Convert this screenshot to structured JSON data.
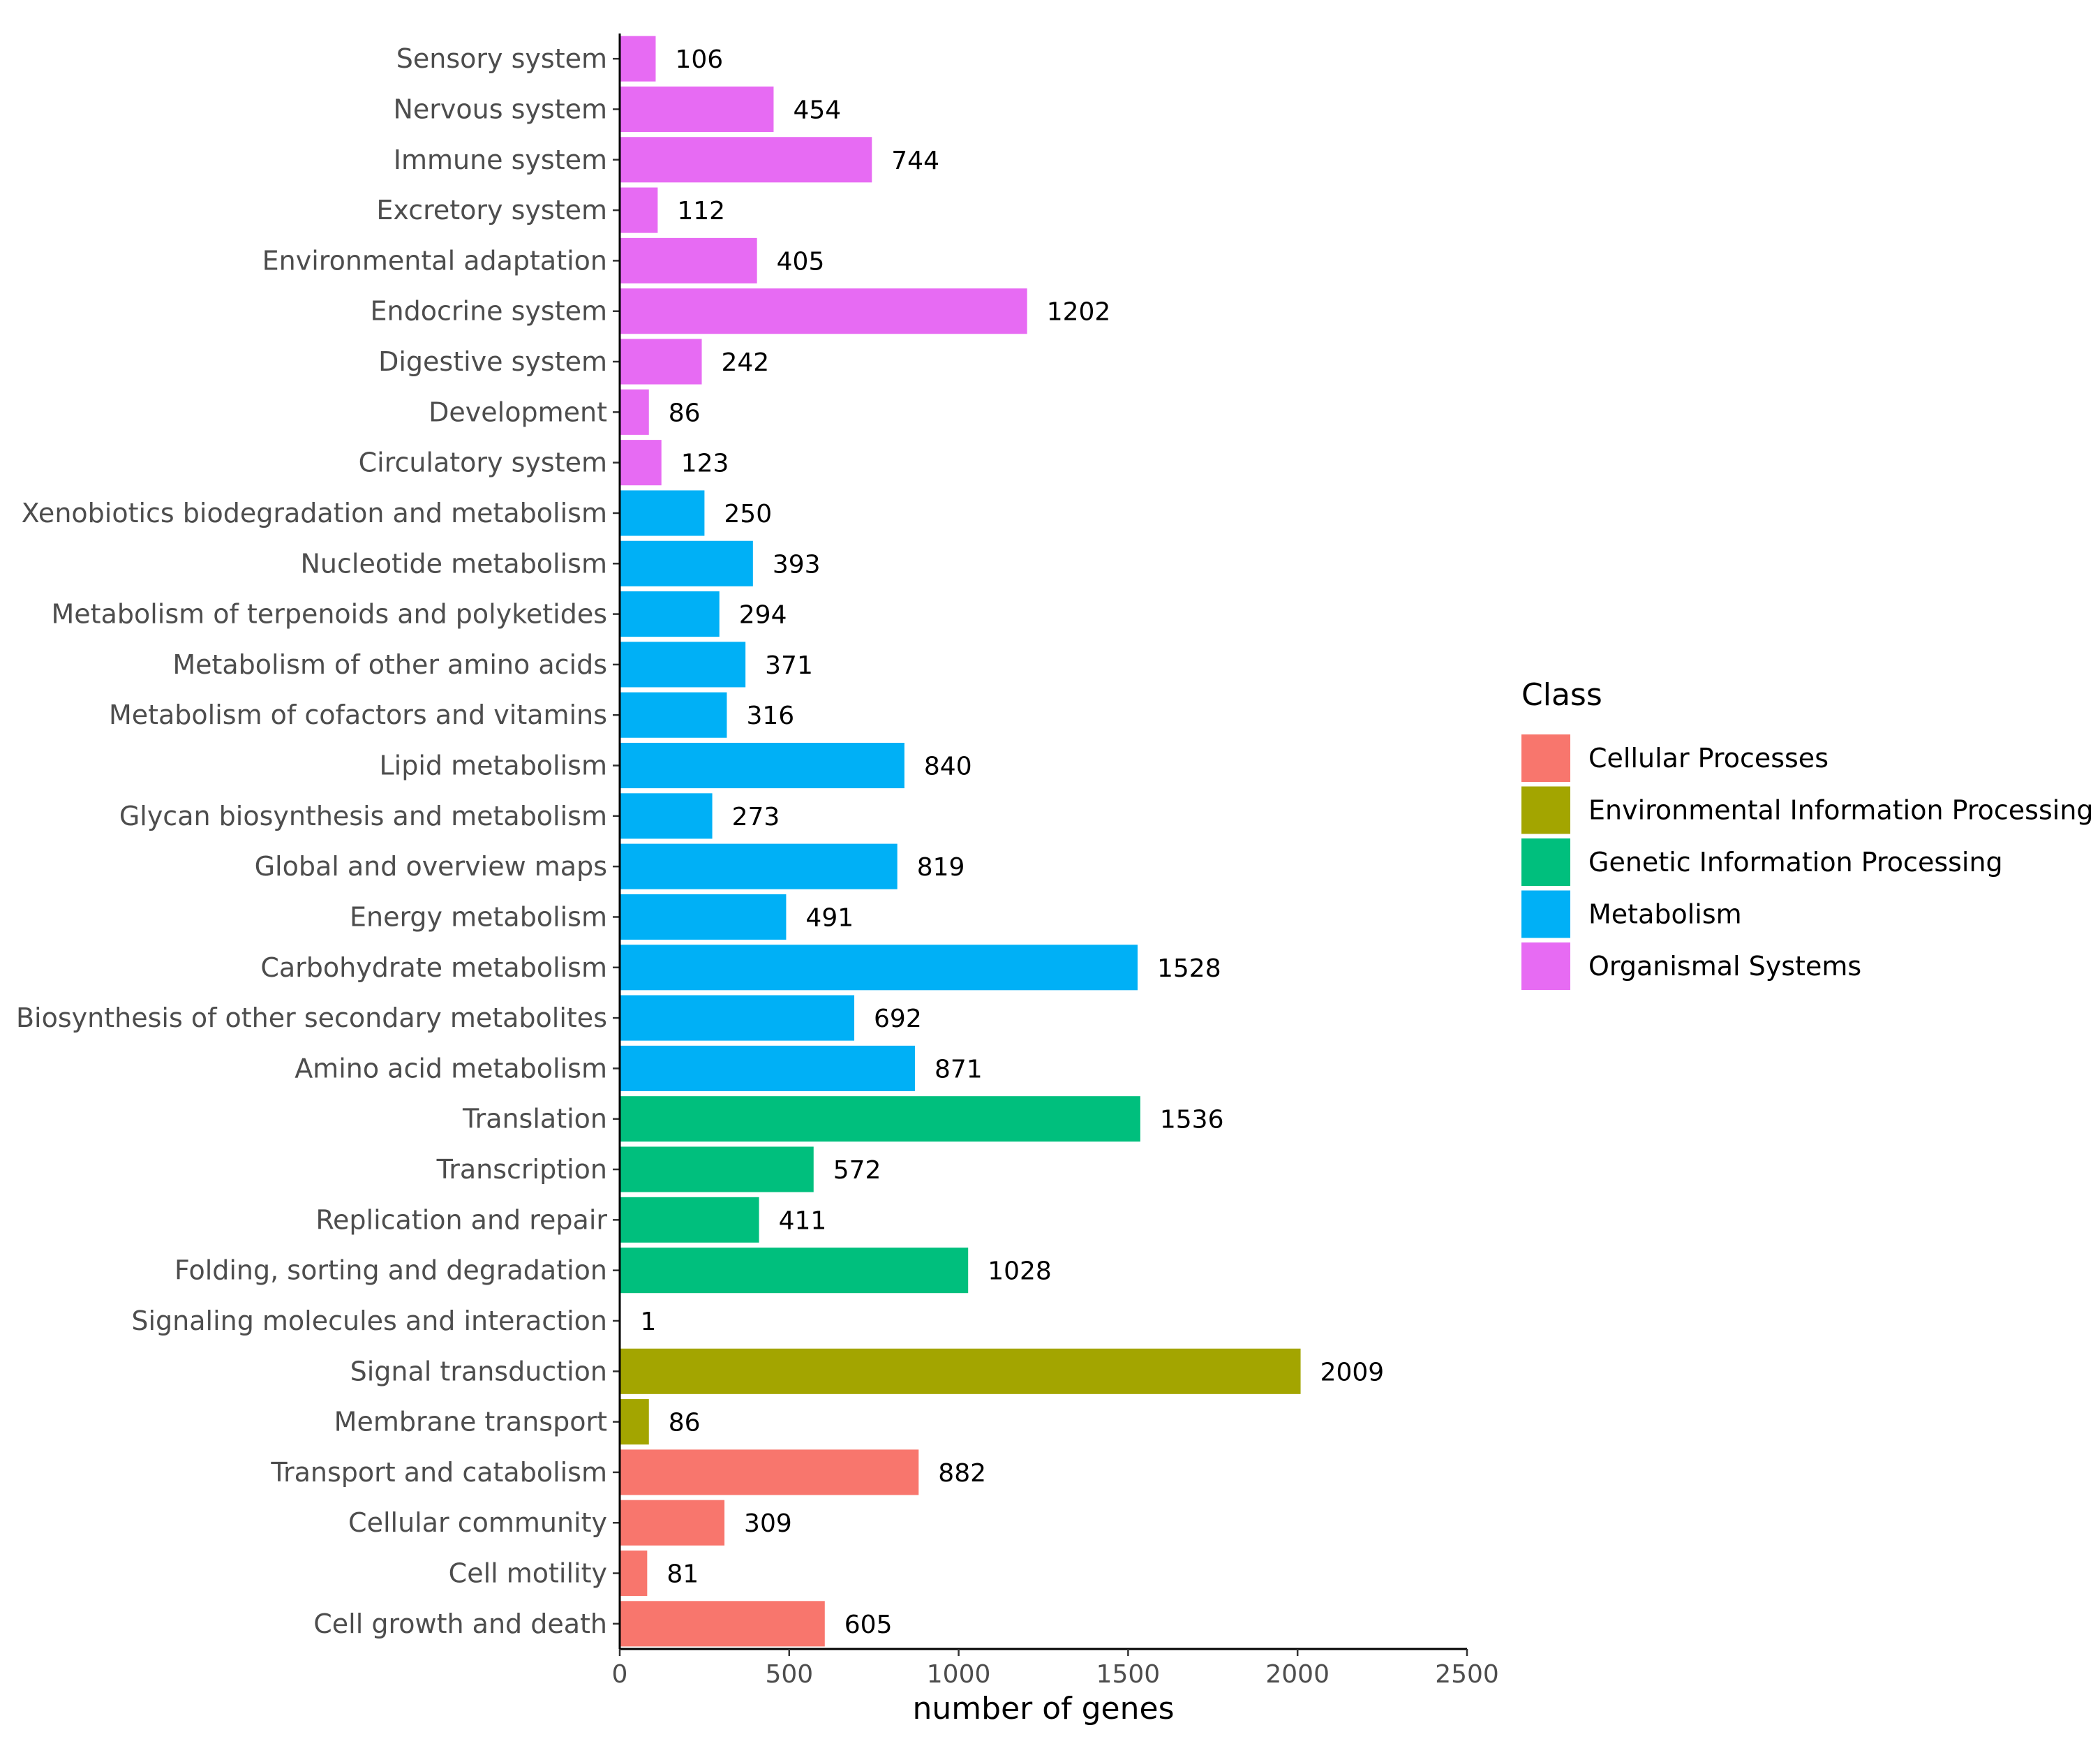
{
  "chart_data": {
    "type": "bar",
    "orientation": "horizontal",
    "xlabel": "number of genes",
    "ylabel": "",
    "xlim": [
      0,
      2500
    ],
    "xticks": [
      0,
      500,
      1000,
      1500,
      2000,
      2500
    ],
    "grid": false,
    "legend_position": "right",
    "legend": {
      "title": "Class",
      "entries": [
        {
          "name": "Cellular Processes",
          "color": "#F8766D"
        },
        {
          "name": "Environmental Information Processing",
          "color": "#A3A500"
        },
        {
          "name": "Genetic Information Processing",
          "color": "#00BF7D"
        },
        {
          "name": "Metabolism",
          "color": "#00B0F6"
        },
        {
          "name": "Organismal Systems",
          "color": "#E76BF3"
        }
      ]
    },
    "bars": [
      {
        "category": "Sensory system",
        "value": 106,
        "class": "Organismal Systems"
      },
      {
        "category": "Nervous system",
        "value": 454,
        "class": "Organismal Systems"
      },
      {
        "category": "Immune system",
        "value": 744,
        "class": "Organismal Systems"
      },
      {
        "category": "Excretory system",
        "value": 112,
        "class": "Organismal Systems"
      },
      {
        "category": "Environmental adaptation",
        "value": 405,
        "class": "Organismal Systems"
      },
      {
        "category": "Endocrine system",
        "value": 1202,
        "class": "Organismal Systems"
      },
      {
        "category": "Digestive system",
        "value": 242,
        "class": "Organismal Systems"
      },
      {
        "category": "Development",
        "value": 86,
        "class": "Organismal Systems"
      },
      {
        "category": "Circulatory system",
        "value": 123,
        "class": "Organismal Systems"
      },
      {
        "category": "Xenobiotics biodegradation and metabolism",
        "value": 250,
        "class": "Metabolism"
      },
      {
        "category": "Nucleotide metabolism",
        "value": 393,
        "class": "Metabolism"
      },
      {
        "category": "Metabolism of terpenoids and polyketides",
        "value": 294,
        "class": "Metabolism"
      },
      {
        "category": "Metabolism of other amino acids",
        "value": 371,
        "class": "Metabolism"
      },
      {
        "category": "Metabolism of cofactors and vitamins",
        "value": 316,
        "class": "Metabolism"
      },
      {
        "category": "Lipid metabolism",
        "value": 840,
        "class": "Metabolism"
      },
      {
        "category": "Glycan biosynthesis and metabolism",
        "value": 273,
        "class": "Metabolism"
      },
      {
        "category": "Global and overview maps",
        "value": 819,
        "class": "Metabolism"
      },
      {
        "category": "Energy metabolism",
        "value": 491,
        "class": "Metabolism"
      },
      {
        "category": "Carbohydrate metabolism",
        "value": 1528,
        "class": "Metabolism"
      },
      {
        "category": "Biosynthesis of other secondary metabolites",
        "value": 692,
        "class": "Metabolism"
      },
      {
        "category": "Amino acid metabolism",
        "value": 871,
        "class": "Metabolism"
      },
      {
        "category": "Translation",
        "value": 1536,
        "class": "Genetic Information Processing"
      },
      {
        "category": "Transcription",
        "value": 572,
        "class": "Genetic Information Processing"
      },
      {
        "category": "Replication and repair",
        "value": 411,
        "class": "Genetic Information Processing"
      },
      {
        "category": "Folding, sorting and degradation",
        "value": 1028,
        "class": "Genetic Information Processing"
      },
      {
        "category": "Signaling molecules and interaction",
        "value": 1,
        "class": "Environmental Information Processing"
      },
      {
        "category": "Signal transduction",
        "value": 2009,
        "class": "Environmental Information Processing"
      },
      {
        "category": "Membrane transport",
        "value": 86,
        "class": "Environmental Information Processing"
      },
      {
        "category": "Transport and catabolism",
        "value": 882,
        "class": "Cellular Processes"
      },
      {
        "category": "Cellular community",
        "value": 309,
        "class": "Cellular Processes"
      },
      {
        "category": "Cell motility",
        "value": 81,
        "class": "Cellular Processes"
      },
      {
        "category": "Cell growth and death",
        "value": 605,
        "class": "Cellular Processes"
      }
    ]
  }
}
